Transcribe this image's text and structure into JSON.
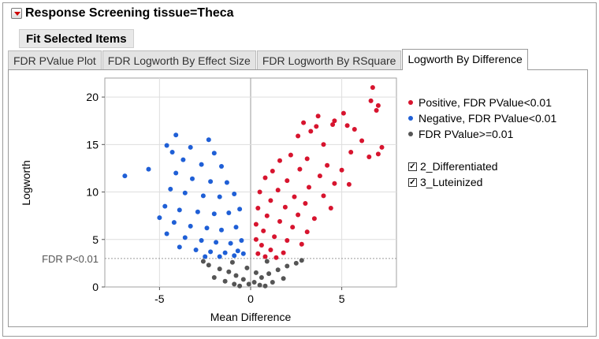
{
  "header": {
    "title": "Response Screening tissue=Theca"
  },
  "fit_button": {
    "label": "Fit Selected Items"
  },
  "tabs": [
    {
      "label": "FDR PValue Plot",
      "active": false
    },
    {
      "label": "FDR Logworth By Effect Size",
      "active": false
    },
    {
      "label": "FDR Logworth By RSquare",
      "active": false
    },
    {
      "label": "Logworth By Difference",
      "active": true
    }
  ],
  "legend": {
    "items": [
      {
        "label": "Positive, FDR PValue<0.01",
        "color": "#d7142e"
      },
      {
        "label": "Negative, FDR PValue<0.01",
        "color": "#1f5fd6"
      },
      {
        "label": "FDR PValue>=0.01",
        "color": "#555555"
      }
    ]
  },
  "filters": [
    {
      "label": "2_Differentiated",
      "checked": true,
      "mark": "✓"
    },
    {
      "label": "3_Luteinized",
      "checked": true,
      "mark": "✓"
    }
  ],
  "chart_data": {
    "type": "scatter",
    "xlabel": "Mean Difference",
    "ylabel": "Logworth",
    "xlim": [
      -8,
      8
    ],
    "ylim": [
      0,
      22
    ],
    "xticks": [
      -5,
      0,
      5
    ],
    "yticks": [
      0,
      5,
      10,
      15,
      20
    ],
    "threshold": {
      "label": "FDR P<0.01",
      "y": 3
    },
    "grid": true,
    "series": [
      {
        "name": "Positive, FDR PValue<0.01",
        "color": "#d7142e",
        "points": [
          [
            6.7,
            21.0
          ],
          [
            6.6,
            19.6
          ],
          [
            7.0,
            19.1
          ],
          [
            6.9,
            18.6
          ],
          [
            5.1,
            18.3
          ],
          [
            4.6,
            17.5
          ],
          [
            4.5,
            17.1
          ],
          [
            5.3,
            17.0
          ],
          [
            5.7,
            16.6
          ],
          [
            7.2,
            14.7
          ],
          [
            6.1,
            15.4
          ],
          [
            6.5,
            13.7
          ],
          [
            7.0,
            14.0
          ],
          [
            3.7,
            18.0
          ],
          [
            3.6,
            16.9
          ],
          [
            2.9,
            17.3
          ],
          [
            2.6,
            15.9
          ],
          [
            3.3,
            16.4
          ],
          [
            4.0,
            15.0
          ],
          [
            5.5,
            14.2
          ],
          [
            2.2,
            13.9
          ],
          [
            3.1,
            13.5
          ],
          [
            4.2,
            12.8
          ],
          [
            5.0,
            12.3
          ],
          [
            1.6,
            13.3
          ],
          [
            2.7,
            12.4
          ],
          [
            3.8,
            11.7
          ],
          [
            4.6,
            10.9
          ],
          [
            1.2,
            12.2
          ],
          [
            2.0,
            11.2
          ],
          [
            3.2,
            10.5
          ],
          [
            4.0,
            9.6
          ],
          [
            5.4,
            10.8
          ],
          [
            0.8,
            11.5
          ],
          [
            1.5,
            10.2
          ],
          [
            2.4,
            9.5
          ],
          [
            3.0,
            8.8
          ],
          [
            4.4,
            8.3
          ],
          [
            0.5,
            10.0
          ],
          [
            1.1,
            9.1
          ],
          [
            1.9,
            8.4
          ],
          [
            2.6,
            7.6
          ],
          [
            3.5,
            7.2
          ],
          [
            0.4,
            8.3
          ],
          [
            0.9,
            7.5
          ],
          [
            1.6,
            6.9
          ],
          [
            2.3,
            6.3
          ],
          [
            3.1,
            5.8
          ],
          [
            0.3,
            6.6
          ],
          [
            0.7,
            5.9
          ],
          [
            1.3,
            5.3
          ],
          [
            2.0,
            4.9
          ],
          [
            2.8,
            4.5
          ],
          [
            0.3,
            5.0
          ],
          [
            0.6,
            4.4
          ],
          [
            1.1,
            3.9
          ],
          [
            1.8,
            3.6
          ],
          [
            0.4,
            3.5
          ],
          [
            0.8,
            3.2
          ],
          [
            1.4,
            3.1
          ]
        ]
      },
      {
        "name": "Negative, FDR PValue<0.01",
        "color": "#1f5fd6",
        "points": [
          [
            -6.9,
            11.7
          ],
          [
            -5.6,
            12.4
          ],
          [
            -4.1,
            16.0
          ],
          [
            -2.3,
            15.5
          ],
          [
            -4.6,
            14.9
          ],
          [
            -3.3,
            14.7
          ],
          [
            -2.0,
            14.1
          ],
          [
            -4.3,
            14.2
          ],
          [
            -3.7,
            13.4
          ],
          [
            -2.7,
            12.9
          ],
          [
            -1.6,
            12.7
          ],
          [
            -4.1,
            12.0
          ],
          [
            -3.2,
            11.4
          ],
          [
            -2.2,
            11.1
          ],
          [
            -1.3,
            11.0
          ],
          [
            -4.4,
            10.3
          ],
          [
            -3.6,
            9.9
          ],
          [
            -2.6,
            9.6
          ],
          [
            -1.7,
            9.5
          ],
          [
            -0.9,
            9.8
          ],
          [
            -4.7,
            8.5
          ],
          [
            -3.9,
            8.1
          ],
          [
            -2.9,
            7.9
          ],
          [
            -2.0,
            7.7
          ],
          [
            -1.2,
            7.8
          ],
          [
            -0.6,
            8.2
          ],
          [
            -5.0,
            7.3
          ],
          [
            -4.2,
            6.8
          ],
          [
            -3.3,
            6.4
          ],
          [
            -2.4,
            6.2
          ],
          [
            -1.6,
            6.0
          ],
          [
            -0.8,
            6.3
          ],
          [
            -4.6,
            5.6
          ],
          [
            -3.6,
            5.2
          ],
          [
            -2.7,
            4.9
          ],
          [
            -1.9,
            4.7
          ],
          [
            -1.1,
            4.6
          ],
          [
            -0.5,
            4.9
          ],
          [
            -3.9,
            4.2
          ],
          [
            -3.0,
            3.9
          ],
          [
            -2.2,
            3.7
          ],
          [
            -1.4,
            3.6
          ],
          [
            -0.7,
            3.8
          ],
          [
            -2.5,
            3.2
          ],
          [
            -1.7,
            3.2
          ],
          [
            -0.9,
            3.3
          ],
          [
            -0.4,
            3.5
          ]
        ]
      },
      {
        "name": "FDR PValue>=0.01",
        "color": "#555555",
        "points": [
          [
            -2.3,
            2.3
          ],
          [
            -1.7,
            1.9
          ],
          [
            -1.2,
            1.6
          ],
          [
            -0.8,
            1.2
          ],
          [
            -0.4,
            0.8
          ],
          [
            -0.1,
            0.3
          ],
          [
            0.2,
            0.5
          ],
          [
            0.6,
            1.0
          ],
          [
            1.0,
            1.4
          ],
          [
            1.5,
            1.8
          ],
          [
            2.0,
            2.2
          ],
          [
            2.5,
            2.5
          ],
          [
            -2.0,
            1.0
          ],
          [
            -1.4,
            0.6
          ],
          [
            -0.9,
            0.3
          ],
          [
            0.5,
            0.2
          ],
          [
            1.2,
            0.5
          ],
          [
            1.8,
            0.9
          ],
          [
            -2.6,
            2.7
          ],
          [
            2.8,
            2.8
          ],
          [
            -1.0,
            2.6
          ],
          [
            0.9,
            2.7
          ],
          [
            -0.2,
            2.0
          ],
          [
            0.3,
            1.5
          ],
          [
            -0.6,
            0.1
          ],
          [
            0.8,
            0.1
          ]
        ]
      }
    ]
  }
}
